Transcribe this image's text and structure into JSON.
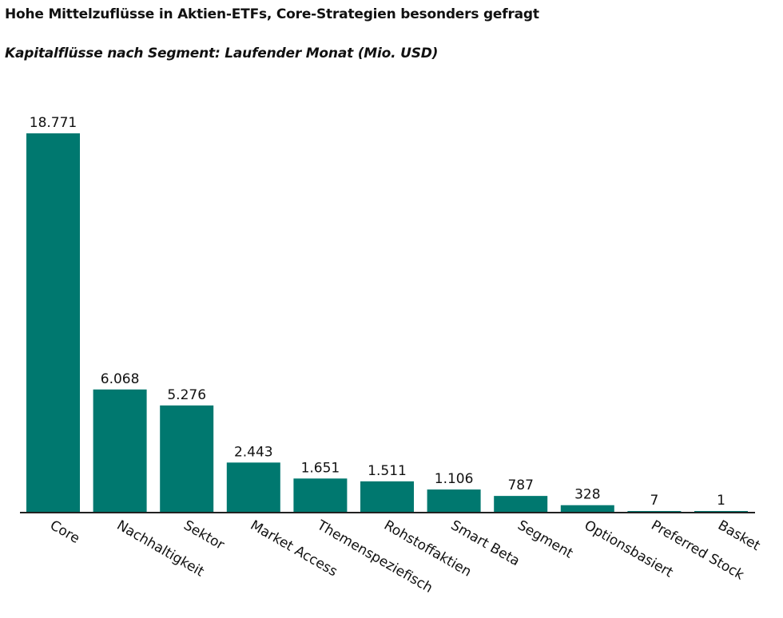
{
  "title": "Hohe Mittelzuflüsse in Aktien-ETFs, Core-Strategien besonders gefragt",
  "subtitle": "Kapitalflüsse nach Segment: Laufender Monat (Mio. USD)",
  "chart_data": {
    "type": "bar",
    "title": "Hohe Mittelzuflüsse in Aktien-ETFs, Core-Strategien besonders gefragt",
    "subtitle": "Kapitalflüsse nach Segment: Laufender Monat (Mio. USD)",
    "categories": [
      "Core",
      "Nachhaltigkeit",
      "Sektor",
      "Market Access",
      "Themenspeziefisch",
      "Rohstoffaktien",
      "Smart Beta",
      "Segment",
      "Optionsbasiert",
      "Preferred Stock",
      "Basket"
    ],
    "values": [
      18771,
      6068,
      5276,
      2443,
      1651,
      1511,
      1106,
      787,
      328,
      7,
      1
    ],
    "data_labels": [
      "18.771",
      "6.068",
      "5.276",
      "2.443",
      "1.651",
      "1.511",
      "1.106",
      "787",
      "328",
      "7",
      "1"
    ],
    "xlabel": "",
    "ylabel": "",
    "ylim": [
      0,
      18771
    ],
    "grid": false,
    "bar_color": "#00786F"
  }
}
